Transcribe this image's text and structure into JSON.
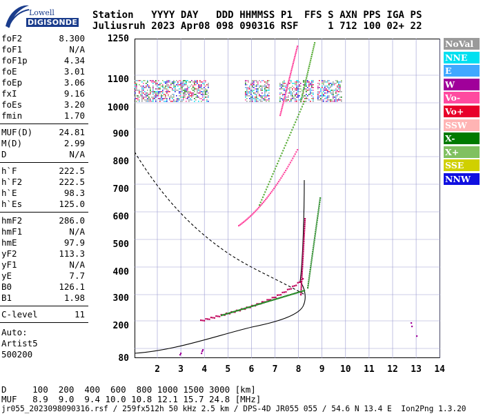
{
  "logo": {
    "line1": "Lowell",
    "line2": "DIGISONDE"
  },
  "header": {
    "row1": "Station   YYYY DAY   DDD HHMMSS P1  FFS S AXN PPS IGA PS",
    "row2": "Juliusruh 2023 Apr08 098 090316 RSF     1 712 100 02+ 22"
  },
  "params": {
    "group1": [
      {
        "label": "foF2",
        "value": "8.300"
      },
      {
        "label": "foF1",
        "value": "N/A"
      },
      {
        "label": "foF1p",
        "value": "4.34"
      },
      {
        "label": "foE",
        "value": "3.01"
      },
      {
        "label": "foEp",
        "value": "3.06"
      },
      {
        "label": "fxI",
        "value": "9.16"
      },
      {
        "label": "foEs",
        "value": "3.20"
      },
      {
        "label": "fmin",
        "value": "1.70"
      }
    ],
    "group2": [
      {
        "label": "MUF(D)",
        "value": "24.81"
      },
      {
        "label": "M(D)",
        "value": "2.99"
      },
      {
        "label": "D",
        "value": "N/A"
      }
    ],
    "group3": [
      {
        "label": "h`F",
        "value": "222.5"
      },
      {
        "label": "h`F2",
        "value": "222.5"
      },
      {
        "label": "h`E",
        "value": "98.3"
      },
      {
        "label": "h`Es",
        "value": "125.0"
      }
    ],
    "group4": [
      {
        "label": "hmF2",
        "value": "286.0"
      },
      {
        "label": "hmF1",
        "value": "N/A"
      },
      {
        "label": "hmE",
        "value": "97.9"
      },
      {
        "label": "yF2",
        "value": "113.3"
      },
      {
        "label": "yF1",
        "value": "N/A"
      },
      {
        "label": "yE",
        "value": "7.7"
      },
      {
        "label": "B0",
        "value": "126.1"
      },
      {
        "label": "B1",
        "value": "1.98"
      }
    ],
    "group5": [
      {
        "label": "C-level",
        "value": "11"
      }
    ],
    "auto": [
      "Auto:",
      "Artist5",
      "500200"
    ]
  },
  "axes": {
    "y_ticks": [
      "1250",
      "1100",
      "1000",
      "900",
      "800",
      "700",
      "600",
      "500",
      "400",
      "300",
      "200",
      "80"
    ],
    "x_ticks": [
      "2",
      "3",
      "4",
      "5",
      "6",
      "7",
      "8",
      "9",
      "10",
      "11",
      "12",
      "13",
      "14"
    ]
  },
  "legend": [
    {
      "label": "NoVal",
      "bg": "#9a9a9a",
      "fg": "#ffffff"
    },
    {
      "label": "NNE",
      "bg": "#00e0f0",
      "fg": "#ffffff"
    },
    {
      "label": "E",
      "bg": "#40a8ff",
      "fg": "#ffffff"
    },
    {
      "label": "W",
      "bg": "#a0009a",
      "fg": "#ffffff"
    },
    {
      "label": "Vo-",
      "bg": "#ff4aa0",
      "fg": "#ffffff"
    },
    {
      "label": "Vo+",
      "bg": "#e8002a",
      "fg": "#ffffff"
    },
    {
      "label": "SSW",
      "bg": "#ffb4b4",
      "fg": "#ffffff"
    },
    {
      "label": "X-",
      "bg": "#007a00",
      "fg": "#ffffff"
    },
    {
      "label": "X+",
      "bg": "#80c060",
      "fg": "#ffffff"
    },
    {
      "label": "SSE",
      "bg": "#d0d000",
      "fg": "#ffffff"
    },
    {
      "label": "NNW",
      "bg": "#1010e0",
      "fg": "#ffffff"
    }
  ],
  "bottom": {
    "d_row": "D     100  200  400  600  800 1000 1500 3000 [km]",
    "muf_row": "MUF   8.9  9.0  9.4 10.0 10.8 12.1 15.7 24.8 [MHz]",
    "footer": "jr055_2023098090316.rsf / 259fx512h 50 kHz 2.5 km / DPS-4D JR055 055 / 54.6 N 13.4 E  Ion2Png 1.3.20"
  }
}
